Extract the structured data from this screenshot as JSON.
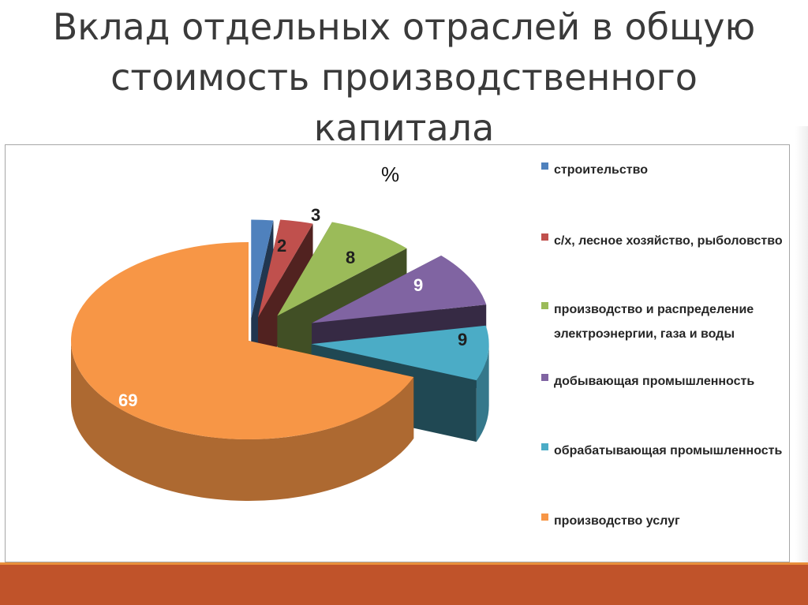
{
  "slide": {
    "title_lines": [
      "Вклад отдельных отраслей в общую",
      "стоимость производственного",
      "капитала"
    ]
  },
  "chart_data": {
    "type": "pie",
    "unit": "%",
    "categories": [
      "строительство",
      "с/х, лесное хозяйство, рыболовство",
      "производство и распределение электроэнергии, газа и воды",
      "добывающая промышленность",
      "обрабатывающая промышленность",
      "производство услуг"
    ],
    "values": [
      2,
      3,
      8,
      9,
      9,
      69
    ],
    "data_labels": [
      "2",
      "3",
      "8",
      "9",
      "9",
      "69"
    ],
    "colors": [
      "#4f81bd",
      "#c0504d",
      "#9bbb59",
      "#8064a2",
      "#4bacc6",
      "#f79646"
    ],
    "legend_position": "right",
    "exploded": true,
    "three_d": true
  },
  "legend": [
    {
      "label": "строительство"
    },
    {
      "label": "с/х, лесное хозяйство, рыболовство"
    },
    {
      "label": "производство и распределение электроэнергии, газа и воды"
    },
    {
      "label": "добывающая промышленность"
    },
    {
      "label": "обрабатывающая промышленность"
    },
    {
      "label": "производство услуг"
    }
  ]
}
